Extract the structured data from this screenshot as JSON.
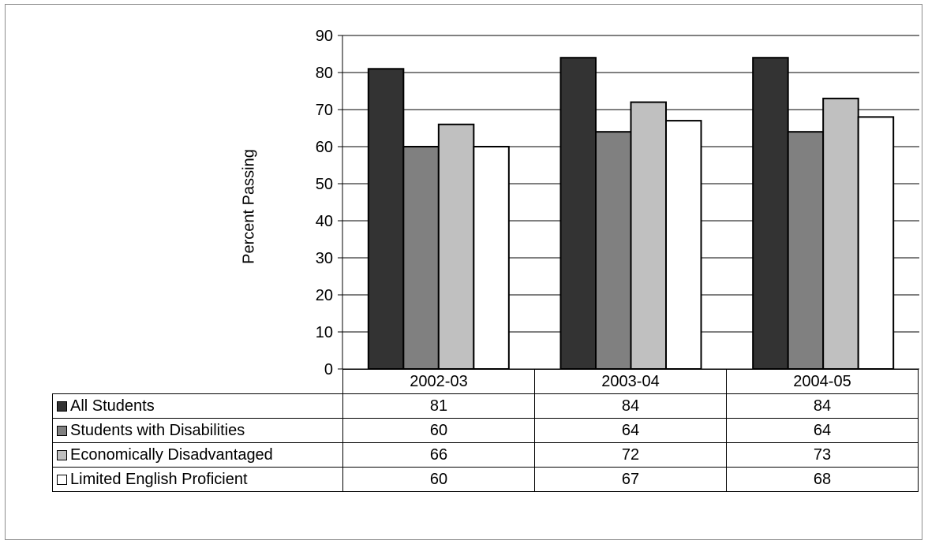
{
  "chart_data": {
    "type": "bar",
    "categories": [
      "2002-03",
      "2003-04",
      "2004-05"
    ],
    "series": [
      {
        "name": "All Students",
        "values": [
          81,
          84,
          84
        ],
        "color": "#333333"
      },
      {
        "name": "Students with Disabilities",
        "values": [
          60,
          64,
          64
        ],
        "color": "#808080"
      },
      {
        "name": "Economically Disadvantaged",
        "values": [
          66,
          72,
          73
        ],
        "color": "#c0c0c0"
      },
      {
        "name": "Limited English Proficient",
        "values": [
          60,
          67,
          68
        ],
        "color": "#ffffff"
      }
    ],
    "ylabel": "Percent Passing",
    "ylim": [
      0,
      90
    ],
    "yticks": [
      "0",
      "10",
      "20",
      "30",
      "40",
      "50",
      "60",
      "70",
      "80",
      "90"
    ],
    "grid": true,
    "legend": "data table below chart"
  }
}
